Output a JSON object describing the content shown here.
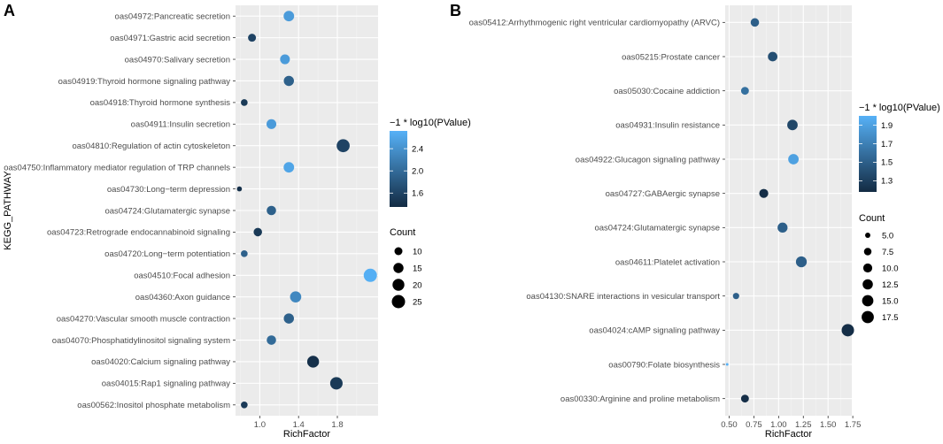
{
  "chart_data": [
    {
      "type": "scatter",
      "panel_label": "A",
      "xlabel": "RichFactor",
      "ylabel": "KEGG_PATHWAY",
      "xlim": [
        0.75,
        2.22
      ],
      "xticks": [
        1.0,
        1.4,
        1.8
      ],
      "xtick_labels": [
        "1.0",
        "1.4",
        "1.8"
      ],
      "categories": [
        "oas04972:Pancreatic secretion",
        "oas04971:Gastric acid secretion",
        "oas04970:Salivary secretion",
        "oas04919:Thyroid hormone signaling pathway",
        "oas04918:Thyroid hormone synthesis",
        "oas04911:Insulin secretion",
        "oas04810:Regulation of actin cytoskeleton",
        "oas04750:Inflammatory mediator regulation of TRP channels",
        "oas04730:Long−term depression",
        "oas04724:Glutamatergic synapse",
        "oas04723:Retrograde endocannabinoid signaling",
        "oas04720:Long−term potentiation",
        "oas04510:Focal adhesion",
        "oas04360:Axon guidance",
        "oas04270:Vascular smooth muscle contraction",
        "oas04070:Phosphatidylinositol signaling system",
        "oas04020:Calcium signaling pathway",
        "oas04015:Rap1 signaling pathway",
        "oas00562:Inositol phosphate metabolism"
      ],
      "points": [
        {
          "x": 1.3,
          "count": 16,
          "pvalue": 2.5
        },
        {
          "x": 0.92,
          "count": 10,
          "pvalue": 1.6
        },
        {
          "x": 1.26,
          "count": 14,
          "pvalue": 2.5
        },
        {
          "x": 1.3,
          "count": 15,
          "pvalue": 1.9
        },
        {
          "x": 0.84,
          "count": 8,
          "pvalue": 1.5
        },
        {
          "x": 1.12,
          "count": 14,
          "pvalue": 2.5
        },
        {
          "x": 1.86,
          "count": 24,
          "pvalue": 1.6
        },
        {
          "x": 1.3,
          "count": 16,
          "pvalue": 2.6
        },
        {
          "x": 0.79,
          "count": 6,
          "pvalue": 1.4
        },
        {
          "x": 1.12,
          "count": 13,
          "pvalue": 1.9
        },
        {
          "x": 0.98,
          "count": 11,
          "pvalue": 1.5
        },
        {
          "x": 0.84,
          "count": 8,
          "pvalue": 1.9
        },
        {
          "x": 2.14,
          "count": 25,
          "pvalue": 2.7
        },
        {
          "x": 1.37,
          "count": 18,
          "pvalue": 2.3
        },
        {
          "x": 1.3,
          "count": 15,
          "pvalue": 1.9
        },
        {
          "x": 1.12,
          "count": 13,
          "pvalue": 2.0
        },
        {
          "x": 1.55,
          "count": 20,
          "pvalue": 1.4
        },
        {
          "x": 1.79,
          "count": 22,
          "pvalue": 1.5
        },
        {
          "x": 0.84,
          "count": 8,
          "pvalue": 1.5
        }
      ],
      "color_legend": {
        "title": "−1 * log10(PValue)",
        "ticks": [
          1.6,
          2.0,
          2.4
        ],
        "tick_labels": [
          "1.6",
          "2.0",
          "2.4"
        ],
        "range": [
          1.35,
          2.72
        ],
        "low_color": "#132B43",
        "high_color": "#56B1F7"
      },
      "size_legend": {
        "title": "Count",
        "ticks": [
          10,
          15,
          20,
          25
        ],
        "tick_labels": [
          "10",
          "15",
          "20",
          "25"
        ],
        "range": [
          5,
          25
        ]
      }
    },
    {
      "type": "scatter",
      "panel_label": "B",
      "xlabel": "RichFactor",
      "ylabel": "",
      "xlim": [
        0.46,
        1.74
      ],
      "xticks": [
        0.5,
        0.75,
        1.0,
        1.25,
        1.5,
        1.75
      ],
      "xtick_labels": [
        "0.50",
        "0.75",
        "1.00",
        "1.25",
        "1.50",
        "1.75"
      ],
      "categories": [
        "oas05412:Arrhythmogenic right ventricular cardiomyopathy (ARVC)",
        "oas05215:Prostate cancer",
        "oas05030:Cocaine addiction",
        "oas04931:Insulin resistance",
        "oas04922:Glucagon signaling pathway",
        "oas04727:GABAergic synapse",
        "oas04724:Glutamatergic synapse",
        "oas04611:Platelet activation",
        "oas04130:SNARE interactions in vesicular transport",
        "oas04024:cAMP signaling pathway",
        "oas00790:Folate biosynthesis",
        "oas00330:Arginine and proline metabolism"
      ],
      "points": [
        {
          "x": 0.76,
          "count": 9,
          "pvalue": 1.5
        },
        {
          "x": 0.94,
          "count": 11,
          "pvalue": 1.4
        },
        {
          "x": 0.66,
          "count": 8,
          "pvalue": 1.6
        },
        {
          "x": 1.14,
          "count": 13,
          "pvalue": 1.35
        },
        {
          "x": 1.15,
          "count": 13,
          "pvalue": 1.9
        },
        {
          "x": 0.85,
          "count": 10,
          "pvalue": 1.2
        },
        {
          "x": 1.04,
          "count": 12,
          "pvalue": 1.5
        },
        {
          "x": 1.23,
          "count": 14,
          "pvalue": 1.5
        },
        {
          "x": 0.57,
          "count": 6,
          "pvalue": 1.5
        },
        {
          "x": 1.7,
          "count": 18,
          "pvalue": 1.2
        },
        {
          "x": 0.48,
          "count": 4,
          "pvalue": 2.0
        },
        {
          "x": 0.66,
          "count": 8,
          "pvalue": 1.2
        }
      ],
      "color_legend": {
        "title": "−1 * log10(PValue)",
        "ticks": [
          1.3,
          1.5,
          1.7,
          1.9
        ],
        "tick_labels": [
          "1.3",
          "1.5",
          "1.7",
          "1.9"
        ],
        "range": [
          1.18,
          2.0
        ],
        "low_color": "#132B43",
        "high_color": "#56B1F7"
      },
      "size_legend": {
        "title": "Count",
        "ticks": [
          5,
          7.5,
          10,
          12.5,
          15,
          17.5
        ],
        "tick_labels": [
          "5.0",
          "7.5",
          "10.0",
          "12.5",
          "15.0",
          "17.5"
        ],
        "range": [
          4,
          18
        ]
      }
    }
  ]
}
